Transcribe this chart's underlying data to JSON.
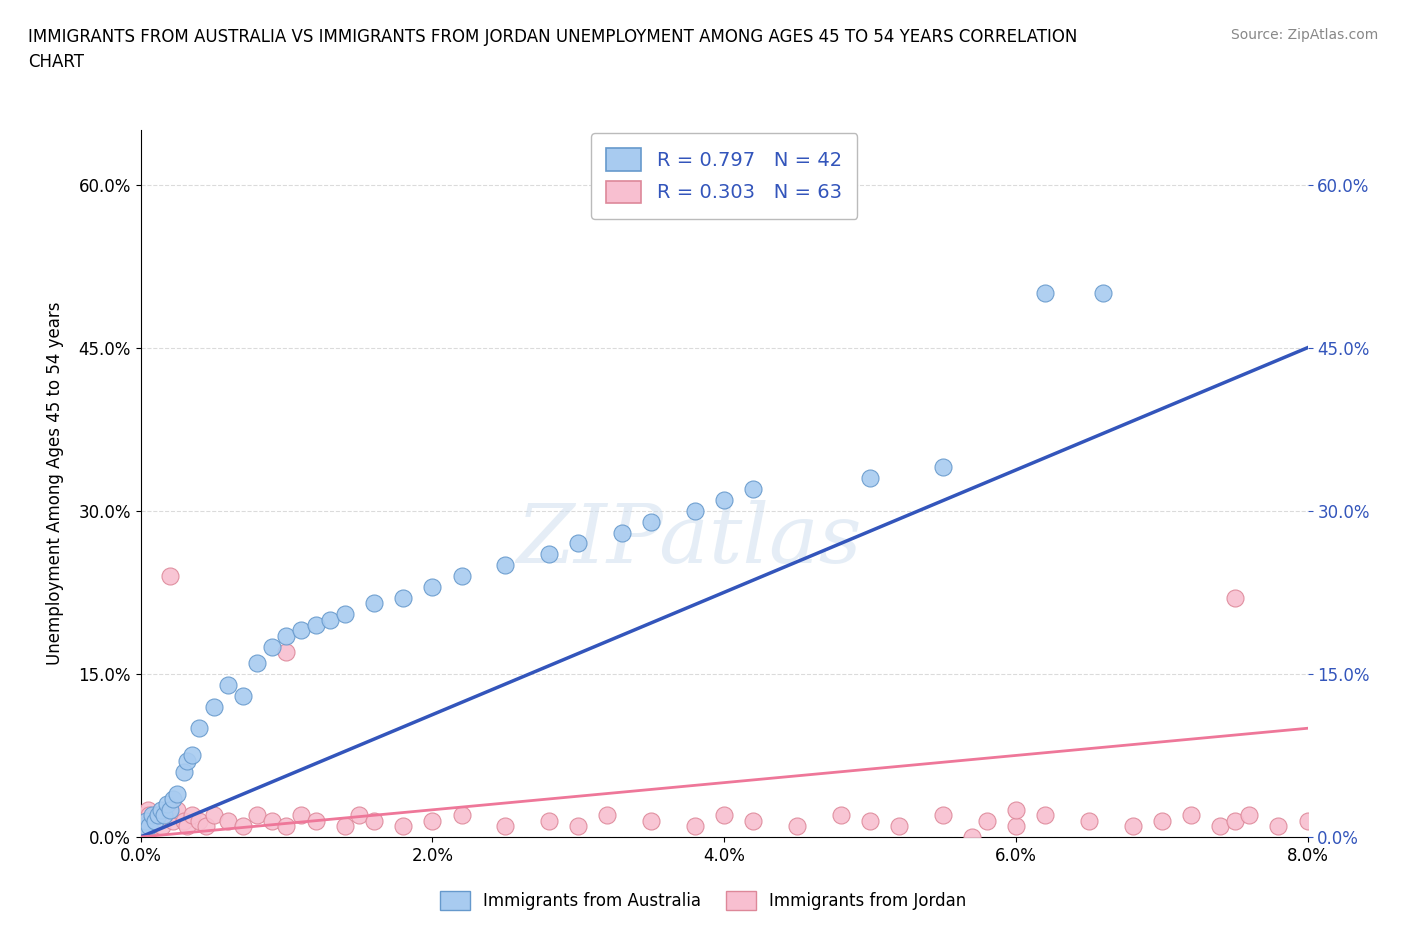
{
  "title": "IMMIGRANTS FROM AUSTRALIA VS IMMIGRANTS FROM JORDAN UNEMPLOYMENT AMONG AGES 45 TO 54 YEARS CORRELATION\nCHART",
  "source": "Source: ZipAtlas.com",
  "xlabel_ticks": [
    "0.0%",
    "2.0%",
    "4.0%",
    "6.0%",
    "8.0%"
  ],
  "xlabel_values": [
    0.0,
    0.02,
    0.04,
    0.06,
    0.08
  ],
  "ylabel_ticks": [
    "0.0%",
    "15.0%",
    "30.0%",
    "45.0%",
    "60.0%"
  ],
  "ylabel_values": [
    0.0,
    0.15,
    0.3,
    0.45,
    0.6
  ],
  "ylabel_label": "Unemployment Among Ages 45 to 54 years",
  "australia_color": "#A8CBF0",
  "jordan_color": "#F8BFD0",
  "australia_edge_color": "#6699CC",
  "jordan_edge_color": "#DD8899",
  "australia_line_color": "#3355BB",
  "jordan_line_color": "#EE7799",
  "australia_R": 0.797,
  "australia_N": 42,
  "jordan_R": 0.303,
  "jordan_N": 63,
  "legend_label_australia": "Immigrants from Australia",
  "legend_label_jordan": "Immigrants from Jordan",
  "watermark": "ZIPatlas",
  "background_color": "#FFFFFF",
  "australia_x": [
    0.0002,
    0.0004,
    0.0006,
    0.0008,
    0.001,
    0.0012,
    0.0014,
    0.0016,
    0.0018,
    0.002,
    0.0022,
    0.0025,
    0.003,
    0.0032,
    0.0035,
    0.004,
    0.005,
    0.006,
    0.007,
    0.008,
    0.009,
    0.01,
    0.011,
    0.012,
    0.013,
    0.014,
    0.016,
    0.018,
    0.02,
    0.022,
    0.025,
    0.028,
    0.03,
    0.033,
    0.035,
    0.038,
    0.04,
    0.042,
    0.05,
    0.055,
    0.062,
    0.066
  ],
  "australia_y": [
    0.01,
    0.015,
    0.01,
    0.02,
    0.015,
    0.02,
    0.025,
    0.02,
    0.03,
    0.025,
    0.035,
    0.04,
    0.06,
    0.07,
    0.075,
    0.1,
    0.12,
    0.14,
    0.13,
    0.16,
    0.175,
    0.185,
    0.19,
    0.195,
    0.2,
    0.205,
    0.215,
    0.22,
    0.23,
    0.24,
    0.25,
    0.26,
    0.27,
    0.28,
    0.29,
    0.3,
    0.31,
    0.32,
    0.33,
    0.34,
    0.5,
    0.5
  ],
  "jordan_x": [
    0.0001,
    0.0002,
    0.0003,
    0.0004,
    0.0005,
    0.0006,
    0.0007,
    0.0008,
    0.001,
    0.0012,
    0.0015,
    0.002,
    0.0022,
    0.0025,
    0.003,
    0.0032,
    0.0035,
    0.004,
    0.0045,
    0.005,
    0.006,
    0.007,
    0.008,
    0.009,
    0.01,
    0.011,
    0.012,
    0.014,
    0.015,
    0.016,
    0.018,
    0.02,
    0.022,
    0.025,
    0.028,
    0.03,
    0.032,
    0.035,
    0.038,
    0.04,
    0.042,
    0.045,
    0.048,
    0.05,
    0.052,
    0.055,
    0.058,
    0.06,
    0.062,
    0.065,
    0.068,
    0.07,
    0.072,
    0.074,
    0.075,
    0.076,
    0.078,
    0.08,
    0.002,
    0.01,
    0.057,
    0.06,
    0.075
  ],
  "jordan_y": [
    0.01,
    0.015,
    0.02,
    0.01,
    0.025,
    0.02,
    0.015,
    0.01,
    0.02,
    0.015,
    0.01,
    0.02,
    0.015,
    0.025,
    0.015,
    0.01,
    0.02,
    0.015,
    0.01,
    0.02,
    0.015,
    0.01,
    0.02,
    0.015,
    0.01,
    0.02,
    0.015,
    0.01,
    0.02,
    0.015,
    0.01,
    0.015,
    0.02,
    0.01,
    0.015,
    0.01,
    0.02,
    0.015,
    0.01,
    0.02,
    0.015,
    0.01,
    0.02,
    0.015,
    0.01,
    0.02,
    0.015,
    0.01,
    0.02,
    0.015,
    0.01,
    0.015,
    0.02,
    0.01,
    0.015,
    0.02,
    0.01,
    0.015,
    0.24,
    0.17,
    0.0,
    0.025,
    0.22
  ],
  "xlim": [
    0.0,
    0.08
  ],
  "ylim": [
    0.0,
    0.65
  ],
  "legend_text_color": "#3355BB"
}
